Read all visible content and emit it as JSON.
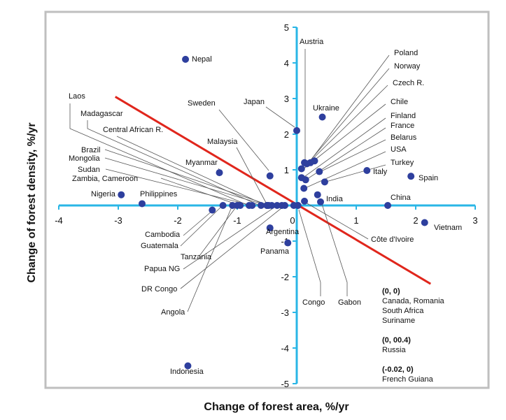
{
  "chart_data": {
    "type": "scatter",
    "title": "",
    "xlabel": "Change of forest area, %/yr",
    "ylabel": "Change of forest density, %/yr",
    "xlim": [
      -4,
      3
    ],
    "ylim": [
      -5,
      5
    ],
    "x_ticks": [
      "-4",
      "-3",
      "-2",
      "-1",
      "0",
      "1",
      "2",
      "3"
    ],
    "y_ticks": [
      "5",
      "4",
      "3",
      "2",
      "1",
      "0",
      "-1",
      "-2",
      "-3",
      "-4",
      "-5"
    ],
    "grid": false,
    "legend": "none",
    "colors": {
      "points": "#2e3f9e",
      "trend": "#e0261c",
      "axes": "#29b6e6",
      "leader": "#555555"
    },
    "trend_line": {
      "x": [
        -3.05,
        2.25
      ],
      "y": [
        3.05,
        -2.2
      ]
    },
    "points": [
      {
        "label": "Nepal",
        "x": -1.87,
        "y": 4.1
      },
      {
        "label": "Indonesia",
        "x": -1.83,
        "y": -4.5
      },
      {
        "label": "Austria",
        "x": 0.13,
        "y": 1.2
      },
      {
        "label": "Ukraine",
        "x": 0.43,
        "y": 2.48
      },
      {
        "label": "Japan",
        "x": 0.0,
        "y": 2.1
      },
      {
        "label": "Poland",
        "x": 0.3,
        "y": 1.25
      },
      {
        "label": "Norway",
        "x": 0.23,
        "y": 1.2
      },
      {
        "label": "Czech R.",
        "x": 0.17,
        "y": 1.17
      },
      {
        "label": "Chile",
        "x": 0.08,
        "y": 1.03
      },
      {
        "label": "Finland",
        "x": 0.08,
        "y": 0.78
      },
      {
        "label": "France",
        "x": 0.15,
        "y": 0.72
      },
      {
        "label": "Belarus",
        "x": 0.38,
        "y": 0.95
      },
      {
        "label": "USA",
        "x": 0.12,
        "y": 0.48
      },
      {
        "label": "Turkey",
        "x": 0.47,
        "y": 0.66
      },
      {
        "label": "India",
        "x": 0.35,
        "y": 0.3
      },
      {
        "label": "Italy",
        "x": 1.18,
        "y": 0.98
      },
      {
        "label": "Spain",
        "x": 1.92,
        "y": 0.82
      },
      {
        "label": "China",
        "x": 1.53,
        "y": 0.0
      },
      {
        "label": "Vietnam",
        "x": 2.15,
        "y": -0.48
      },
      {
        "label": "Côte d'Ivoire",
        "x": 0.13,
        "y": 0.12
      },
      {
        "label": "Congo",
        "x": 0.02,
        "y": 0.0
      },
      {
        "label": "Gabon",
        "x": 0.4,
        "y": 0.1
      },
      {
        "label": "Sweden",
        "x": -0.45,
        "y": 0.83
      },
      {
        "label": "Malaysia",
        "x": -0.5,
        "y": 0.0
      },
      {
        "label": "Myanmar",
        "x": -1.3,
        "y": 0.92
      },
      {
        "label": "Laos",
        "x": -0.8,
        "y": 0.0
      },
      {
        "label": "Madagascar",
        "x": -0.6,
        "y": 0.0
      },
      {
        "label": "Central African R.",
        "x": -0.5,
        "y": 0.0
      },
      {
        "label": "Brazil",
        "x": -0.42,
        "y": 0.0
      },
      {
        "label": "Mongolia",
        "x": -0.47,
        "y": 0.0
      },
      {
        "label": "Sudan",
        "x": -0.75,
        "y": 0.0
      },
      {
        "label": "Zambia, Cameroon",
        "x": -0.95,
        "y": 0.0
      },
      {
        "label": "Nigeria",
        "x": -2.95,
        "y": 0.3
      },
      {
        "label": "Philippines",
        "x": -2.6,
        "y": 0.05
      },
      {
        "label": "Cambodia",
        "x": -1.42,
        "y": -0.13
      },
      {
        "label": "Guatemala",
        "x": -1.24,
        "y": 0.0
      },
      {
        "label": "Tanzania",
        "x": -1.0,
        "y": 0.0
      },
      {
        "label": "Papua NG",
        "x": -0.33,
        "y": 0.0
      },
      {
        "label": "DR Congo",
        "x": -0.2,
        "y": 0.0
      },
      {
        "label": "Angola",
        "x": -1.08,
        "y": 0.0
      },
      {
        "label": "Argentina",
        "x": -0.45,
        "y": -0.63
      },
      {
        "label": "Panama",
        "x": -0.15,
        "y": -1.05
      },
      {
        "label": "",
        "x": -0.05,
        "y": 0.0
      },
      {
        "label": "",
        "x": -0.25,
        "y": 0.0
      },
      {
        "label": "",
        "x": 0.02,
        "y": 0.0
      }
    ],
    "annotations": [
      {
        "title": "(0, 0)",
        "lines": [
          "Canada, Romania",
          "South Africa",
          "Suriname"
        ]
      },
      {
        "title": "(0, 00.4)",
        "lines": [
          "Russia"
        ]
      },
      {
        "title": "(-0.02, 0)",
        "lines": [
          "French Guiana"
        ]
      }
    ]
  }
}
